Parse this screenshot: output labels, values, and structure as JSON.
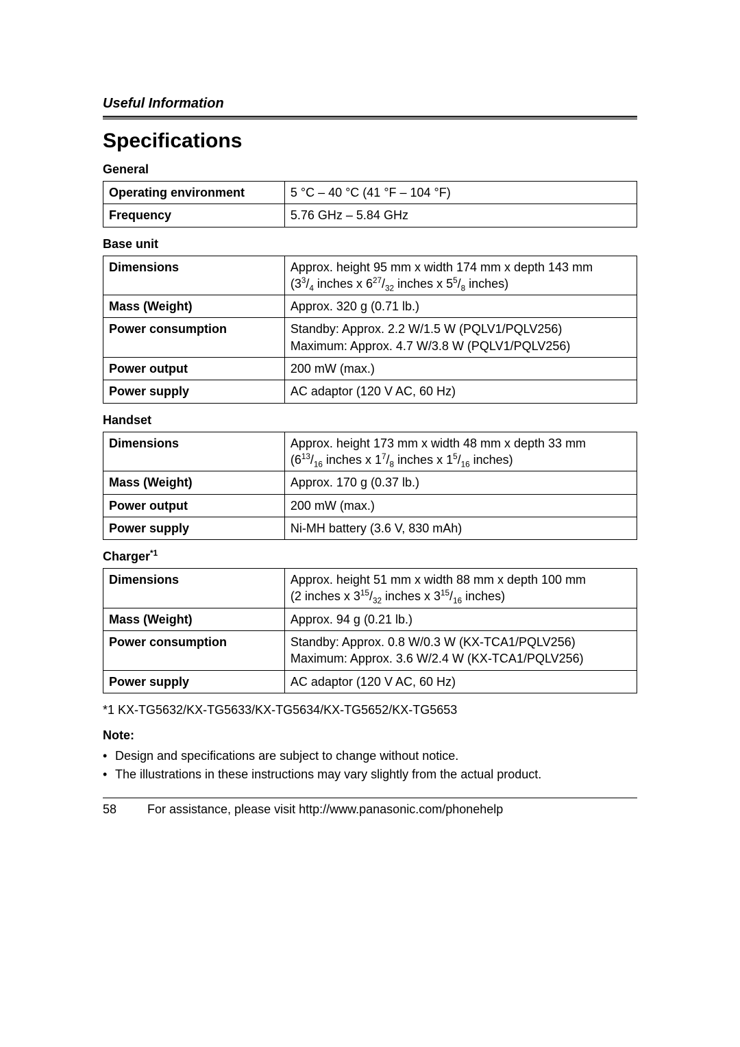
{
  "header": {
    "section": "Useful Information"
  },
  "title": "Specifications",
  "sections": {
    "general": {
      "heading": "General",
      "rows": {
        "op_env": {
          "label": "Operating environment",
          "value": "5 °C – 40 °C (41 °F – 104 °F)"
        },
        "frequency": {
          "label": "Frequency",
          "value": "5.76 GHz – 5.84 GHz"
        }
      }
    },
    "base_unit": {
      "heading": "Base unit",
      "rows": {
        "dimensions": {
          "label": "Dimensions",
          "line1": "Approx. height 95 mm x width 174 mm x depth 143 mm",
          "frac": {
            "open": "(",
            "a_whole": "3",
            "a_num": "3",
            "a_den": "4",
            "a_unit": " inches x ",
            "b_whole": "6",
            "b_num": "27",
            "b_den": "32",
            "b_unit": " inches x ",
            "c_whole": "5",
            "c_num": "5",
            "c_den": "8",
            "c_unit": " inches)",
            "close": ""
          }
        },
        "mass": {
          "label": "Mass (Weight)",
          "prefix": "Approx. 320 ",
          "g": "g",
          "suffix": " (0.71 lb.)"
        },
        "power_consumption": {
          "label": "Power consumption",
          "line1": "Standby: Approx. 2.2 W/1.5 W (PQLV1/PQLV256)",
          "line2": "Maximum: Approx. 4.7 W/3.8 W (PQLV1/PQLV256)"
        },
        "power_output": {
          "label": "Power output",
          "value": "200 mW (max.)"
        },
        "power_supply": {
          "label": "Power supply",
          "value": "AC adaptor (120 V AC, 60 Hz)"
        }
      }
    },
    "handset": {
      "heading": "Handset",
      "rows": {
        "dimensions": {
          "label": "Dimensions",
          "line1": "Approx. height 173 mm x width 48 mm x depth 33 mm",
          "frac": {
            "open": "(",
            "a_whole": "6",
            "a_num": "13",
            "a_den": "16",
            "a_unit": " inches x ",
            "b_whole": "1",
            "b_num": "7",
            "b_den": "8",
            "b_unit": " inches x ",
            "c_whole": "1",
            "c_num": "5",
            "c_den": "16",
            "c_unit": " inches)",
            "close": ""
          }
        },
        "mass": {
          "label": "Mass (Weight)",
          "prefix": "Approx. 170 ",
          "g": "g",
          "suffix": " (0.37 lb.)"
        },
        "power_output": {
          "label": "Power output",
          "value": "200 mW (max.)"
        },
        "power_supply": {
          "label": "Power supply",
          "value": "Ni-MH battery (3.6 V, 830 mAh)"
        }
      }
    },
    "charger": {
      "heading": "Charger",
      "heading_sup": "*1",
      "rows": {
        "dimensions": {
          "label": "Dimensions",
          "line1": "Approx. height 51 mm x width 88 mm x depth 100 mm",
          "frac": {
            "open": "(2 inches x ",
            "a_whole": "3",
            "a_num": "15",
            "a_den": "32",
            "a_unit": " inches x ",
            "b_whole": "3",
            "b_num": "15",
            "b_den": "16",
            "b_unit": " inches)",
            "c_whole": "",
            "c_num": "",
            "c_den": "",
            "c_unit": "",
            "close": ""
          }
        },
        "mass": {
          "label": "Mass (Weight)",
          "prefix": "Approx. 94 ",
          "g": "g",
          "suffix": " (0.21 lb.)"
        },
        "power_consumption": {
          "label": "Power consumption",
          "line1": "Standby: Approx. 0.8 W/0.3 W (KX-TCA1/PQLV256)",
          "line2": "Maximum: Approx. 3.6 W/2.4 W (KX-TCA1/PQLV256)"
        },
        "power_supply": {
          "label": "Power supply",
          "value": "AC adaptor (120 V AC, 60 Hz)"
        }
      }
    }
  },
  "footnote": "*1 KX-TG5632/KX-TG5633/KX-TG5634/KX-TG5652/KX-TG5653",
  "notes": {
    "heading": "Note:",
    "items": [
      "Design and specifications are subject to change without notice.",
      "The illustrations in these instructions may vary slightly from the actual product."
    ]
  },
  "footer": {
    "page": "58",
    "text": "For assistance, please visit http://www.panasonic.com/phonehelp"
  },
  "slash": "/"
}
